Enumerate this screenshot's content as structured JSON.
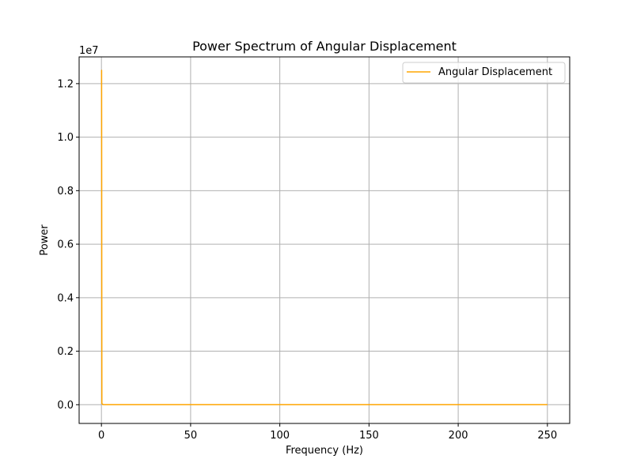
{
  "chart_data": {
    "type": "line",
    "title": "Power Spectrum of Angular Displacement",
    "xlabel": "Frequency (Hz)",
    "ylabel": "Power",
    "y_offset_label": "1e7",
    "xlim": [
      -12.5,
      262.5
    ],
    "ylim": [
      -0.07,
      1.3
    ],
    "y_multiplier": 10000000,
    "x_ticks": [
      0,
      50,
      100,
      150,
      200,
      250
    ],
    "x_tick_labels": [
      "0",
      "50",
      "100",
      "150",
      "200",
      "250"
    ],
    "y_ticks": [
      0.0,
      0.2,
      0.4,
      0.6,
      0.8,
      1.0,
      1.2
    ],
    "y_tick_labels": [
      "0.0",
      "0.2",
      "0.4",
      "0.6",
      "0.8",
      "1.0",
      "1.2"
    ],
    "grid": true,
    "legend_position": "top-right",
    "series": [
      {
        "name": "Angular Displacement",
        "color": "#ffa500",
        "x": [
          0,
          0.1,
          0.25,
          0.5,
          1,
          2,
          5,
          10,
          25,
          50,
          100,
          150,
          200,
          250
        ],
        "y": [
          12500000,
          12500000,
          60000,
          20000,
          5000,
          2000,
          800,
          400,
          150,
          80,
          40,
          25,
          15,
          10
        ]
      }
    ]
  },
  "colors": {
    "grid": "#b0b0b0",
    "axes": "#000000",
    "background": "#ffffff"
  }
}
